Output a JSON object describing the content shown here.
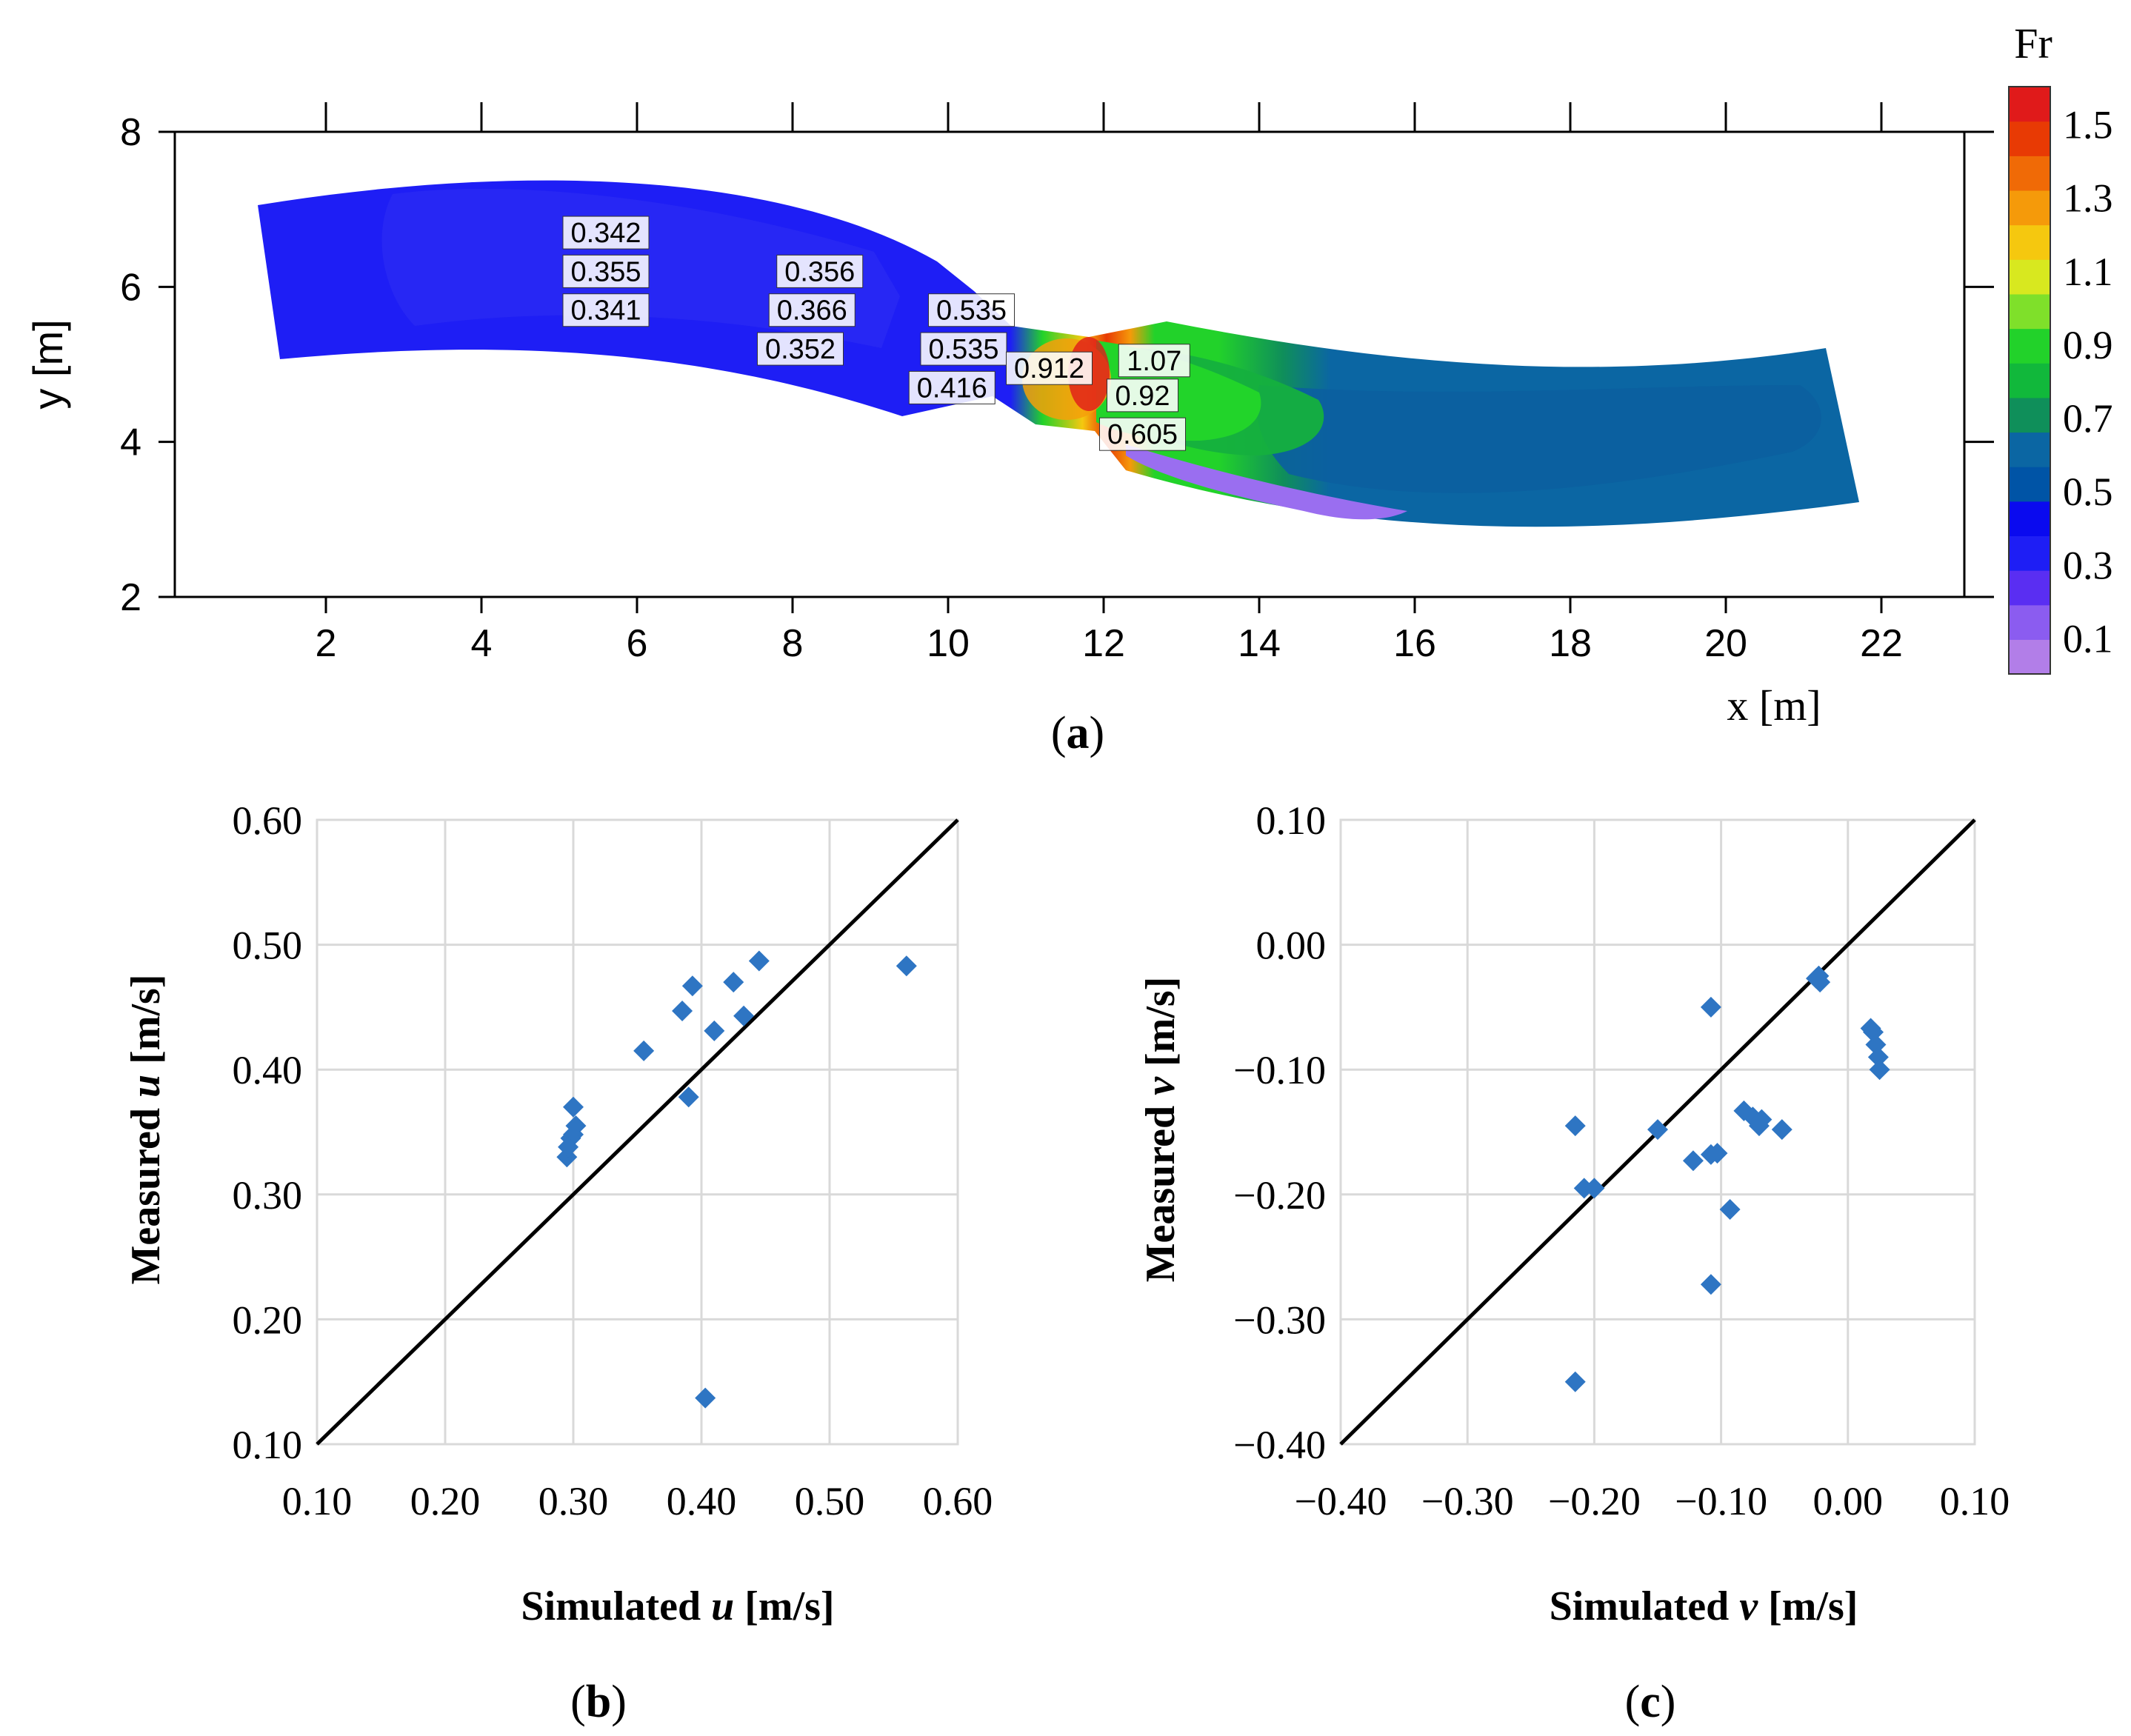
{
  "colors": {
    "line": "#000000",
    "marker": "#2e75c3",
    "grid": "#d9d9d9"
  },
  "chart_data": [
    {
      "id": "a",
      "type": "heatmap",
      "caption": "(a)",
      "caption_letter": "a",
      "xlabel": "x [m]",
      "ylabel": "y [m]",
      "xlim": [
        0,
        23
      ],
      "ylim": [
        2,
        8
      ],
      "xticks": [
        "2",
        "4",
        "6",
        "8",
        "10",
        "12",
        "14",
        "16",
        "18",
        "20",
        "22"
      ],
      "yticks": [
        "2",
        "4",
        "6",
        "8"
      ],
      "colorbar": {
        "title": "Fr",
        "range": [
          0,
          1.6
        ],
        "ticks": [
          "1.5",
          "1.3",
          "1.1",
          "0.9",
          "0.7",
          "0.5",
          "0.3",
          "0.1"
        ],
        "colors": [
          "#b27ee8",
          "#8b5cf0",
          "#5a2ef2",
          "#1e1ef5",
          "#0a0aef",
          "#0054a6",
          "#0b66a3",
          "#0f8f5a",
          "#11b83b",
          "#22d22a",
          "#7fe02a",
          "#d8e81f",
          "#f5c80f",
          "#f59a0a",
          "#f06a06",
          "#e83a04",
          "#e01a1a"
        ]
      },
      "annotations": [
        {
          "text": "0.342",
          "x": 5.6,
          "y": 6.7
        },
        {
          "text": "0.355",
          "x": 5.6,
          "y": 6.2
        },
        {
          "text": "0.341",
          "x": 5.6,
          "y": 5.7
        },
        {
          "text": "0.356",
          "x": 8.35,
          "y": 6.2
        },
        {
          "text": "0.366",
          "x": 8.25,
          "y": 5.7
        },
        {
          "text": "0.352",
          "x": 8.1,
          "y": 5.2
        },
        {
          "text": "0.535",
          "x": 10.3,
          "y": 5.7
        },
        {
          "text": "0.535",
          "x": 10.2,
          "y": 5.2
        },
        {
          "text": "0.416",
          "x": 10.05,
          "y": 4.7
        },
        {
          "text": "0.912",
          "x": 11.3,
          "y": 4.95
        },
        {
          "text": "1.07",
          "x": 12.65,
          "y": 5.05
        },
        {
          "text": "0.92",
          "x": 12.5,
          "y": 4.6
        },
        {
          "text": "0.605",
          "x": 12.5,
          "y": 4.1
        }
      ]
    },
    {
      "id": "b",
      "type": "scatter",
      "caption": "(b)",
      "caption_letter": "b",
      "xlabel_prefix": "Simulated ",
      "xlabel_var": "u",
      "xlabel_suffix": " [m/s]",
      "ylabel_prefix": "Measured ",
      "ylabel_var": "u",
      "ylabel_suffix": " [m/s]",
      "xlim": [
        0.1,
        0.6
      ],
      "ylim": [
        0.1,
        0.6
      ],
      "xticks": [
        "0.10",
        "0.20",
        "0.30",
        "0.40",
        "0.50",
        "0.60"
      ],
      "yticks": [
        "0.10",
        "0.20",
        "0.30",
        "0.40",
        "0.50",
        "0.60"
      ],
      "reference_line": "y = x",
      "series": [
        {
          "name": "u",
          "x": [
            0.295,
            0.3,
            0.3,
            0.298,
            0.302,
            0.296,
            0.355,
            0.385,
            0.39,
            0.393,
            0.41,
            0.425,
            0.433,
            0.445,
            0.403,
            0.56
          ],
          "y": [
            0.33,
            0.348,
            0.37,
            0.345,
            0.355,
            0.338,
            0.415,
            0.447,
            0.378,
            0.467,
            0.431,
            0.47,
            0.443,
            0.487,
            0.137,
            0.483
          ]
        }
      ]
    },
    {
      "id": "c",
      "type": "scatter",
      "caption": "(c)",
      "caption_letter": "c",
      "xlabel_prefix": "Simulated ",
      "xlabel_var": "v",
      "xlabel_suffix": " [m/s]",
      "ylabel_prefix": "Measured ",
      "ylabel_var": "v",
      "ylabel_suffix": " [m/s]",
      "xlim": [
        -0.4,
        0.1
      ],
      "ylim": [
        -0.4,
        0.1
      ],
      "xticks": [
        "−0.40",
        "−0.30",
        "−0.20",
        "−0.10",
        "0.00",
        "0.10"
      ],
      "yticks": [
        "−0.40",
        "−0.30",
        "−0.20",
        "−0.10",
        "0.00",
        "0.10"
      ],
      "reference_line": "y = x",
      "series": [
        {
          "name": "v",
          "x": [
            -0.215,
            -0.208,
            -0.2,
            -0.215,
            -0.15,
            -0.122,
            -0.108,
            -0.103,
            -0.108,
            -0.093,
            -0.108,
            -0.082,
            -0.075,
            -0.07,
            -0.068,
            -0.052,
            -0.025,
            -0.022,
            -0.023,
            0.018,
            0.02,
            0.022,
            0.024,
            0.025
          ],
          "y": [
            -0.145,
            -0.195,
            -0.195,
            -0.35,
            -0.148,
            -0.173,
            -0.05,
            -0.167,
            -0.168,
            -0.212,
            -0.272,
            -0.133,
            -0.138,
            -0.145,
            -0.14,
            -0.148,
            -0.027,
            -0.03,
            -0.025,
            -0.067,
            -0.07,
            -0.08,
            -0.09,
            -0.1
          ]
        }
      ]
    }
  ]
}
